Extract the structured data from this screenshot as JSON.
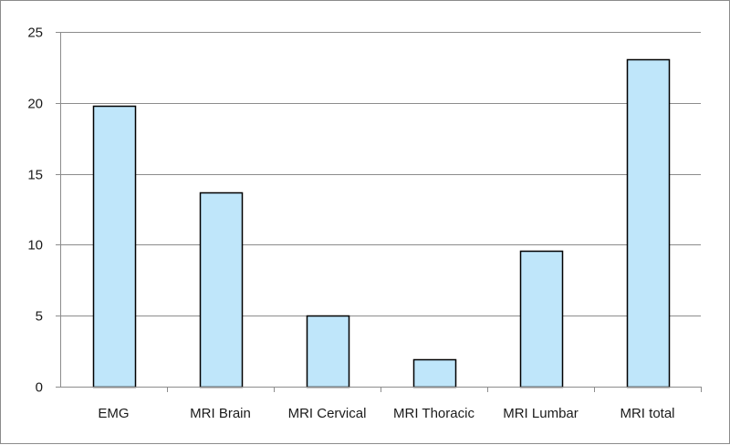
{
  "chart_data": {
    "type": "bar",
    "categories": [
      "EMG",
      "MRI Brain",
      "MRI Cervical",
      "MRI Thoracic",
      "MRI Lumbar",
      "MRI total"
    ],
    "values": [
      19.8,
      13.7,
      5.0,
      1.9,
      9.6,
      23.1
    ],
    "ylim": [
      0,
      25
    ],
    "yticks": [
      "0",
      "5",
      "10",
      "15",
      "20",
      "25"
    ],
    "grid": true,
    "legend": "none",
    "colors": {
      "bar_fill": "#bfe6fa",
      "bar_stroke": "#000000",
      "grid": "#8c8c8c",
      "axis": "#8c8c8c"
    }
  }
}
